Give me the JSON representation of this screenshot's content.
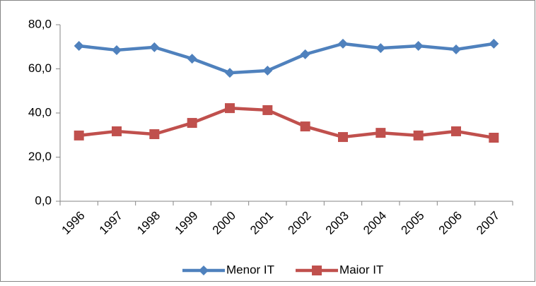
{
  "chart_data": {
    "type": "line",
    "categories": [
      "1996",
      "1997",
      "1998",
      "1999",
      "2000",
      "2001",
      "2002",
      "2003",
      "2004",
      "2005",
      "2006",
      "2007"
    ],
    "series": [
      {
        "name": "Menor IT",
        "color": "#4f81bd",
        "marker": "diamond",
        "values": [
          70.4,
          68.5,
          69.8,
          64.6,
          58.2,
          59.2,
          66.6,
          71.4,
          69.4,
          70.4,
          68.8,
          71.4
        ]
      },
      {
        "name": "Maior IT",
        "color": "#c0504d",
        "marker": "square",
        "values": [
          29.8,
          31.7,
          30.4,
          35.5,
          42.2,
          41.3,
          33.9,
          29.1,
          31.0,
          29.8,
          31.7,
          28.8
        ]
      }
    ],
    "ylim": [
      0,
      80
    ],
    "yticks": [
      {
        "value": 0,
        "label": "0,0"
      },
      {
        "value": 20,
        "label": "20,0"
      },
      {
        "value": 40,
        "label": "40,0"
      },
      {
        "value": 60,
        "label": "60,0"
      },
      {
        "value": 80,
        "label": "80,0"
      }
    ],
    "grid": false,
    "legend": "bottom"
  }
}
